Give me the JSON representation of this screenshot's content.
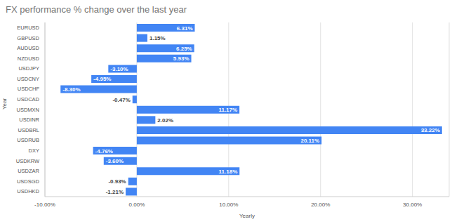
{
  "chart_data": {
    "type": "bar",
    "title": "FX performance % change over the last year",
    "x_label": "Yearly",
    "y_label": "Year",
    "orientation": "horizontal",
    "categories": [
      "EURUSD",
      "GBPUSD",
      "AUDUSD",
      "NZDUSD",
      "USDJPY",
      "USDCNY",
      "USDCHF",
      "USDCAD",
      "USDMXN",
      "USDINR",
      "USDBRL",
      "USDRUB",
      "DXY",
      "USDKRW",
      "USDZAR",
      "USDSGD",
      "USDHKD"
    ],
    "values": [
      6.31,
      1.15,
      6.25,
      5.93,
      -3.1,
      -4.95,
      -8.3,
      -0.47,
      11.17,
      2.02,
      33.22,
      20.11,
      -4.76,
      -3.6,
      11.18,
      -0.93,
      -1.21
    ],
    "value_labels": [
      "6.31%",
      "1.15%",
      "6.25%",
      "5.93%",
      "-3.10%",
      "-4.95%",
      "-8.30%",
      "-0.47%",
      "11.17%",
      "2.02%",
      "33.22%",
      "20.11%",
      "-4.76%",
      "-3.60%",
      "11.18%",
      "-0.93%",
      "-1.21%"
    ],
    "color": "#4285f4",
    "xlim": [
      -10,
      34
    ],
    "xticks": [
      {
        "value": -10,
        "label": "-10.00%"
      },
      {
        "value": 0,
        "label": "0.00%"
      },
      {
        "value": 10,
        "label": "10.00%"
      },
      {
        "value": 20,
        "label": "20.00%"
      },
      {
        "value": 30,
        "label": "30.00%"
      }
    ],
    "grid": true,
    "data_labels": true
  }
}
